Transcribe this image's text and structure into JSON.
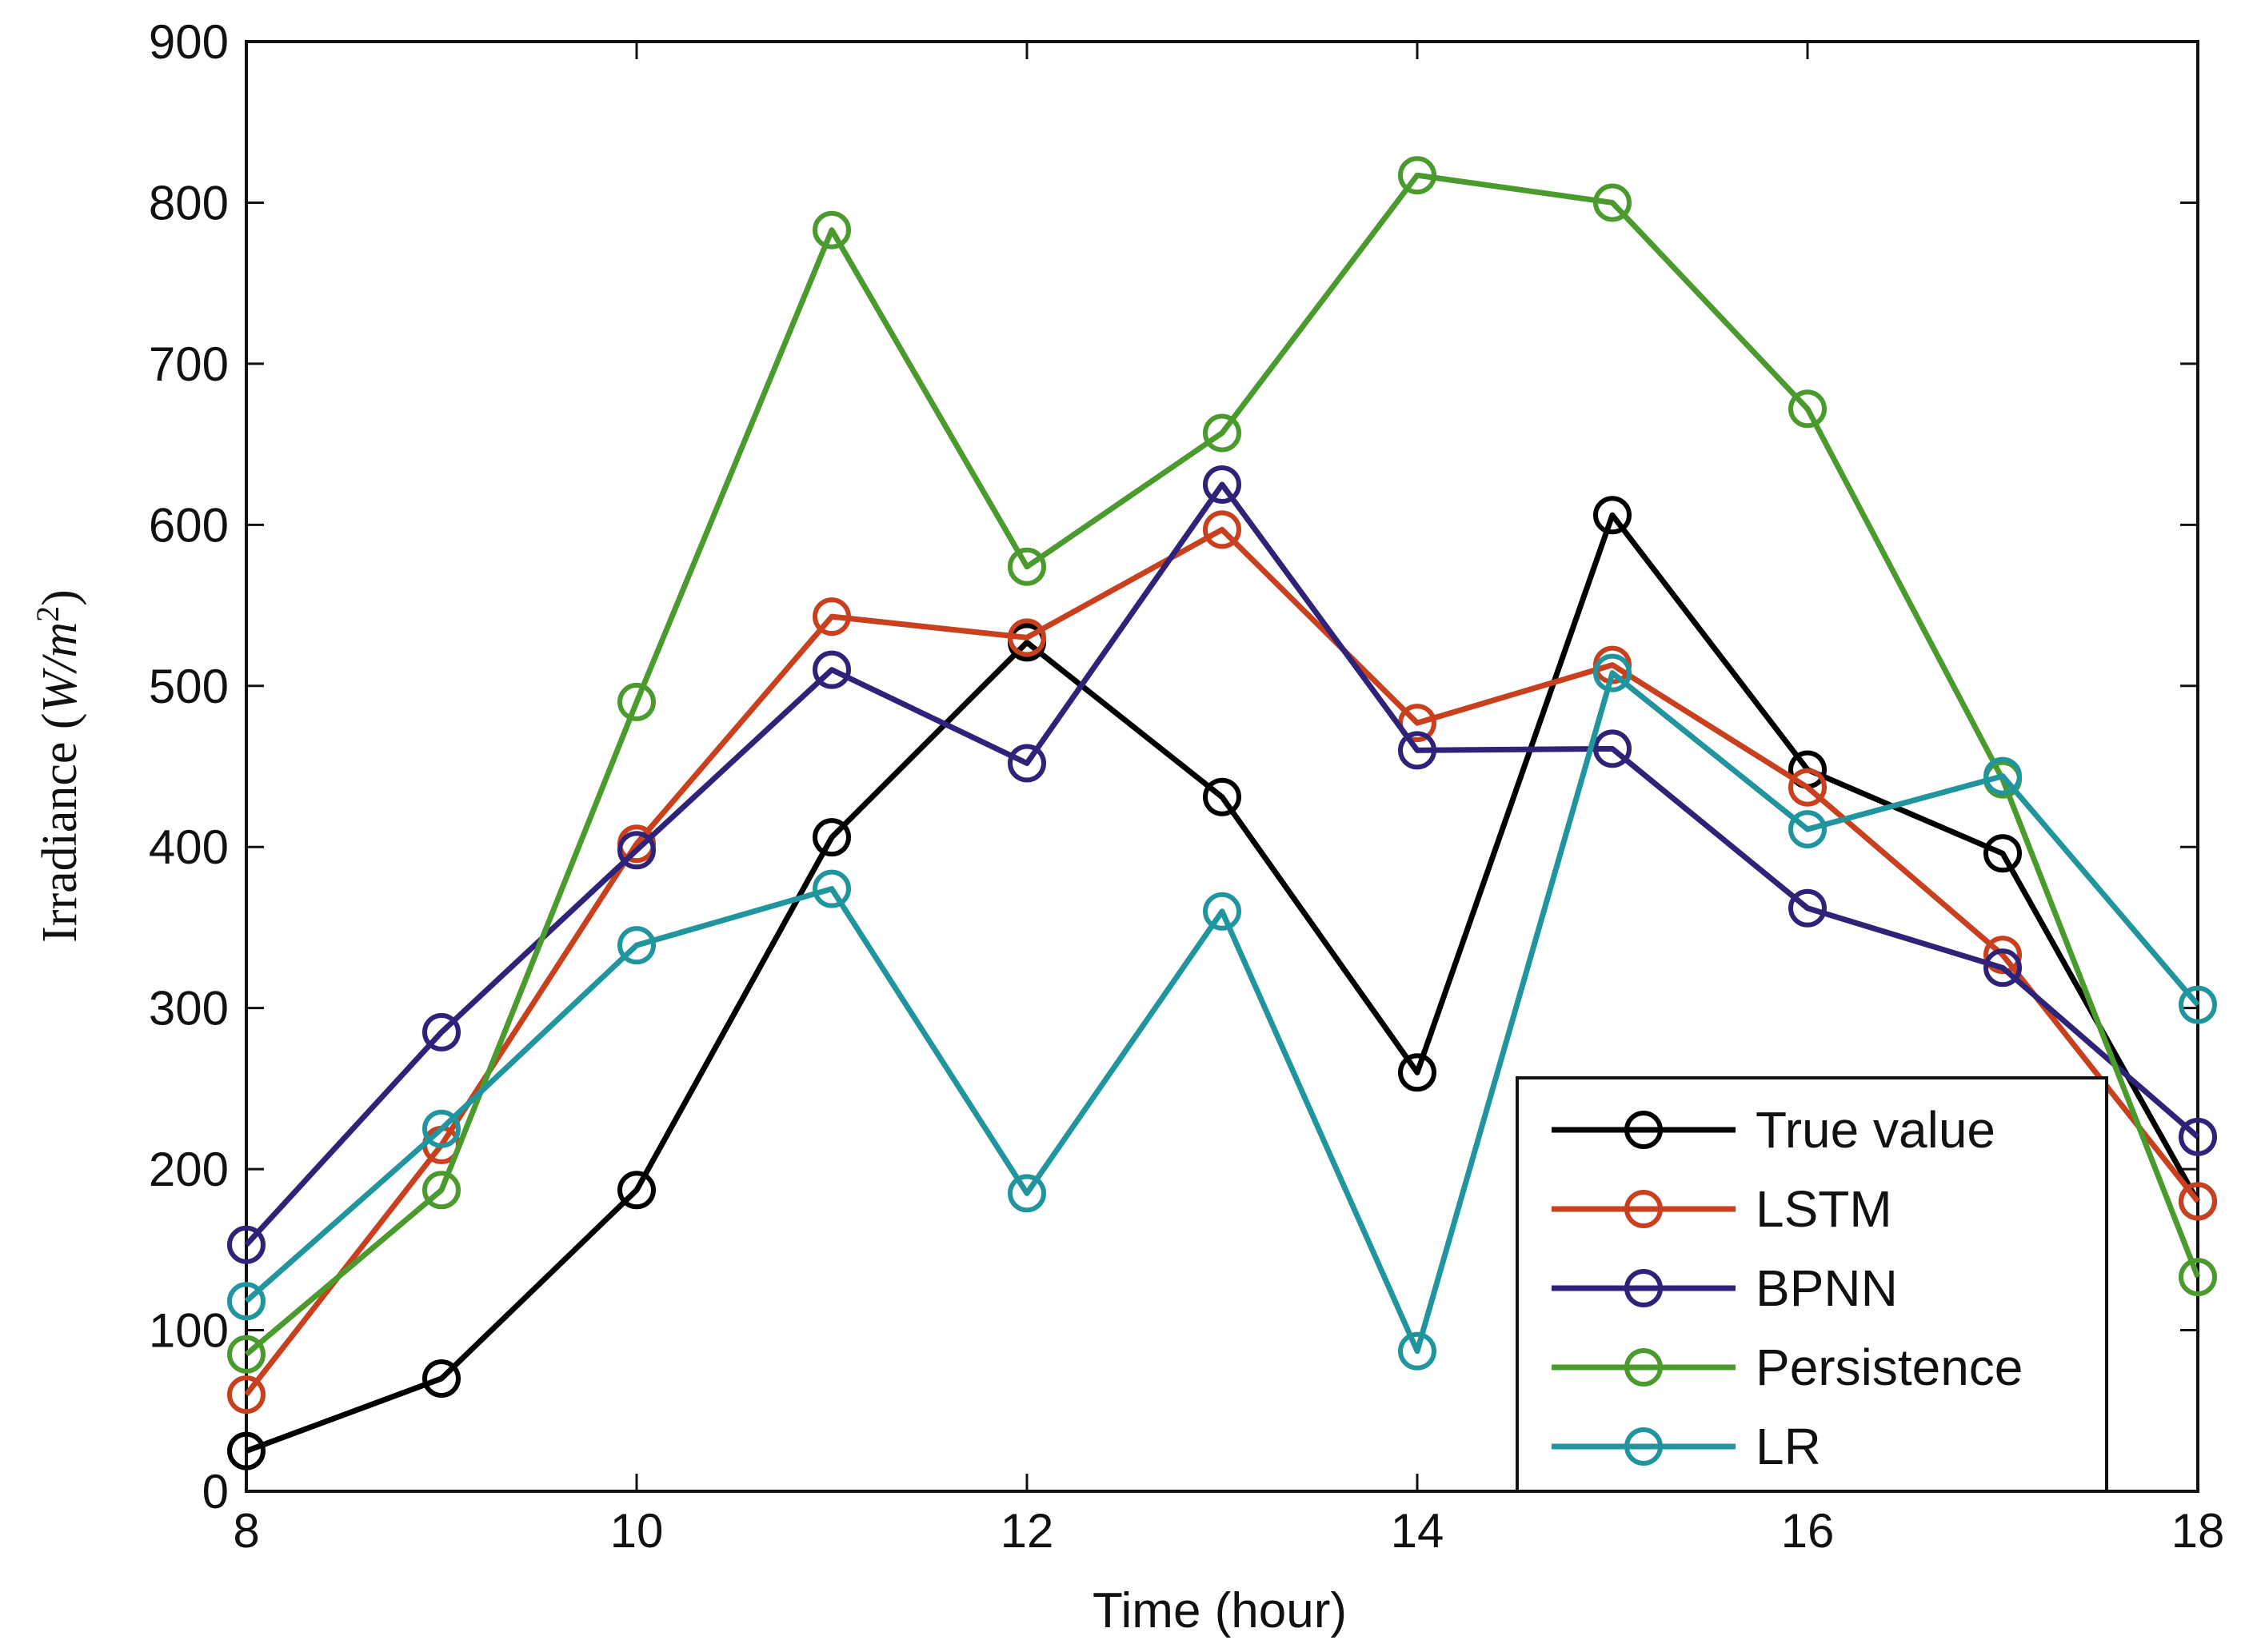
{
  "chart_data": {
    "type": "line",
    "title": "",
    "xlabel": "Time (hour)",
    "ylabel": {
      "prefix": "Irradiance (",
      "unit_w": "W/m",
      "unit_exp": "2",
      "suffix": ")"
    },
    "xlim": [
      8,
      18
    ],
    "ylim": [
      0,
      900
    ],
    "xticks": [
      8,
      10,
      12,
      14,
      16,
      18
    ],
    "yticks": [
      0,
      100,
      200,
      300,
      400,
      500,
      600,
      700,
      800,
      900
    ],
    "x": [
      8,
      9,
      10,
      11,
      12,
      13,
      14,
      15,
      16,
      17,
      18
    ],
    "grid": false,
    "legend_position": "bottom-right",
    "series": [
      {
        "name": "True value",
        "color": "#000000",
        "values": [
          25,
          70,
          187,
          406,
          527,
          431,
          260,
          606,
          448,
          396,
          180
        ]
      },
      {
        "name": "LSTM",
        "color": "#c8401e",
        "values": [
          60,
          215,
          402,
          543,
          530,
          597,
          477,
          513,
          437,
          333,
          180
        ]
      },
      {
        "name": "BPNN",
        "color": "#2e2378",
        "values": [
          153,
          285,
          398,
          510,
          452,
          625,
          460,
          461,
          362,
          325,
          220
        ]
      },
      {
        "name": "Persistence",
        "color": "#4a9a2e",
        "values": [
          85,
          187,
          490,
          783,
          574,
          657,
          817,
          800,
          672,
          442,
          133
        ]
      },
      {
        "name": "LR",
        "color": "#21959e",
        "values": [
          118,
          225,
          339,
          374,
          185,
          360,
          87,
          508,
          411,
          444,
          302
        ]
      }
    ]
  }
}
